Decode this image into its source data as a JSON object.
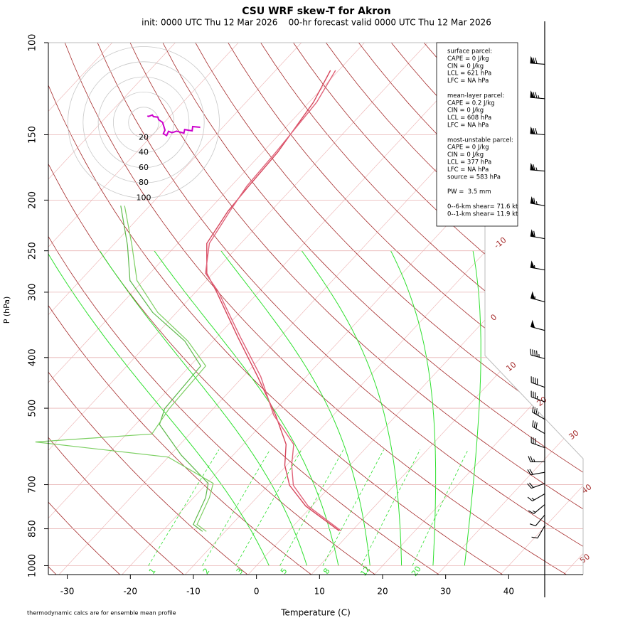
{
  "chart_data": {
    "type": "skew-t",
    "title": "CSU WRF skew-T for Akron",
    "subtitle": "init: 0000 UTC Thu 12 Mar 2026    00-hr forecast valid 0000 UTC Thu 12 Mar 2026",
    "x_label": "Temperature (C)",
    "y_label": "P (hPa)",
    "footnote": "thermodynamic calcs are for ensemble mean profile",
    "log_y": true,
    "xlim": [
      -33,
      51.8
    ],
    "xticks": [
      -30,
      -20,
      -10,
      0,
      10,
      20,
      30,
      40
    ],
    "ylim": [
      1040,
      100
    ],
    "yticks": [
      100,
      150,
      200,
      250,
      300,
      400,
      500,
      700,
      850,
      1000
    ],
    "isotherm_labels": [
      -10,
      0,
      10,
      20,
      30,
      40,
      50
    ],
    "mixing_ratio_labels": [
      1,
      2,
      3,
      5,
      8,
      12,
      20
    ],
    "temperature_profiles": [
      {
        "color": "#d6455b",
        "pressure": [
          858,
          769,
          702,
          643,
          586,
          515,
          435,
          366,
          299,
          276,
          242,
          210,
          188,
          162,
          130,
          113
        ],
        "values": [
          8.0,
          -1.0,
          -6.6,
          -10.3,
          -13.2,
          -19.2,
          -27.7,
          -36.6,
          -46.8,
          -51.0,
          -55.4,
          -56.8,
          -57.2,
          -57.6,
          -59.3,
          -61.3
        ]
      },
      {
        "color": "#e0637a",
        "pressure": [
          858,
          769,
          702,
          643,
          586,
          515,
          435,
          366,
          299,
          276,
          242,
          210,
          188,
          162,
          130,
          113
        ],
        "values": [
          8.3,
          -0.6,
          -6.0,
          -9.2,
          -12.0,
          -19.5,
          -27.2,
          -36.2,
          -46.5,
          -51.2,
          -55.0,
          -56.5,
          -57.5,
          -57.9,
          -58.8,
          -60.5
        ]
      }
    ],
    "dewpoint_profiles": [
      {
        "color": "#5cb84a",
        "pressure": [
          860,
          834,
          741,
          696,
          614,
          537,
          501,
          415,
          372,
          328,
          285,
          244,
          205
        ],
        "values": [
          -13.6,
          -16.1,
          -18.1,
          -19.8,
          -28.3,
          -36.2,
          -37.7,
          -38.3,
          -44.5,
          -53.8,
          -62.1,
          -67.7,
          -74.6
        ]
      },
      {
        "color": "#7ccf62",
        "pressure": [
          860,
          834,
          741,
          696,
          620,
          580,
          560,
          501,
          415,
          372,
          328,
          285,
          244,
          205
        ],
        "values": [
          -13.0,
          -15.5,
          -17.5,
          -19.0,
          -30.0,
          -53.3,
          -36.0,
          -37.0,
          -37.5,
          -44.0,
          -53.0,
          -61.0,
          -67.0,
          -74.0
        ]
      }
    ],
    "wind": {
      "pressure": [
        110,
        128,
        150,
        176,
        205,
        237,
        272,
        313,
        355,
        402,
        456,
        486,
        525,
        559,
        595,
        633,
        663,
        696,
        729,
        764,
        800,
        839
      ],
      "speed": [
        70,
        75,
        70,
        65,
        65,
        60,
        55,
        55,
        50,
        45,
        40,
        35,
        35,
        30,
        30,
        25,
        20,
        20,
        15,
        15,
        10,
        10
      ],
      "direction": [
        275,
        275,
        275,
        275,
        280,
        280,
        280,
        285,
        285,
        285,
        290,
        290,
        300,
        300,
        290,
        270,
        260,
        250,
        240,
        230,
        220,
        210
      ],
      "color": "#cc00cc"
    },
    "hodograph_rings": [
      20,
      40,
      60,
      80,
      100
    ],
    "info_box": [
      [
        "surface parcel:",
        "CAPE = 0 J/kg",
        "CIN = 0 J/kg",
        "LCL = 621 hPa",
        "LFC = NA hPa"
      ],
      [
        "mean-layer parcel:",
        "CAPE = 0.2 J/kg",
        "CIN = 0 J/kg",
        "LCL = 608 hPa",
        "LFC = NA hPa"
      ],
      [
        "most-unstable parcel:",
        "CAPE = 0 J/kg",
        "CIN = 0 J/kg",
        "LCL = 377 hPa",
        "LFC = NA hPa",
        "source = 583 hPa"
      ],
      [
        "PW =  3.5 mm"
      ],
      [
        "0--6-km shear= 71.6 kt",
        "0--1-km shear= 11.9 kt"
      ]
    ]
  }
}
